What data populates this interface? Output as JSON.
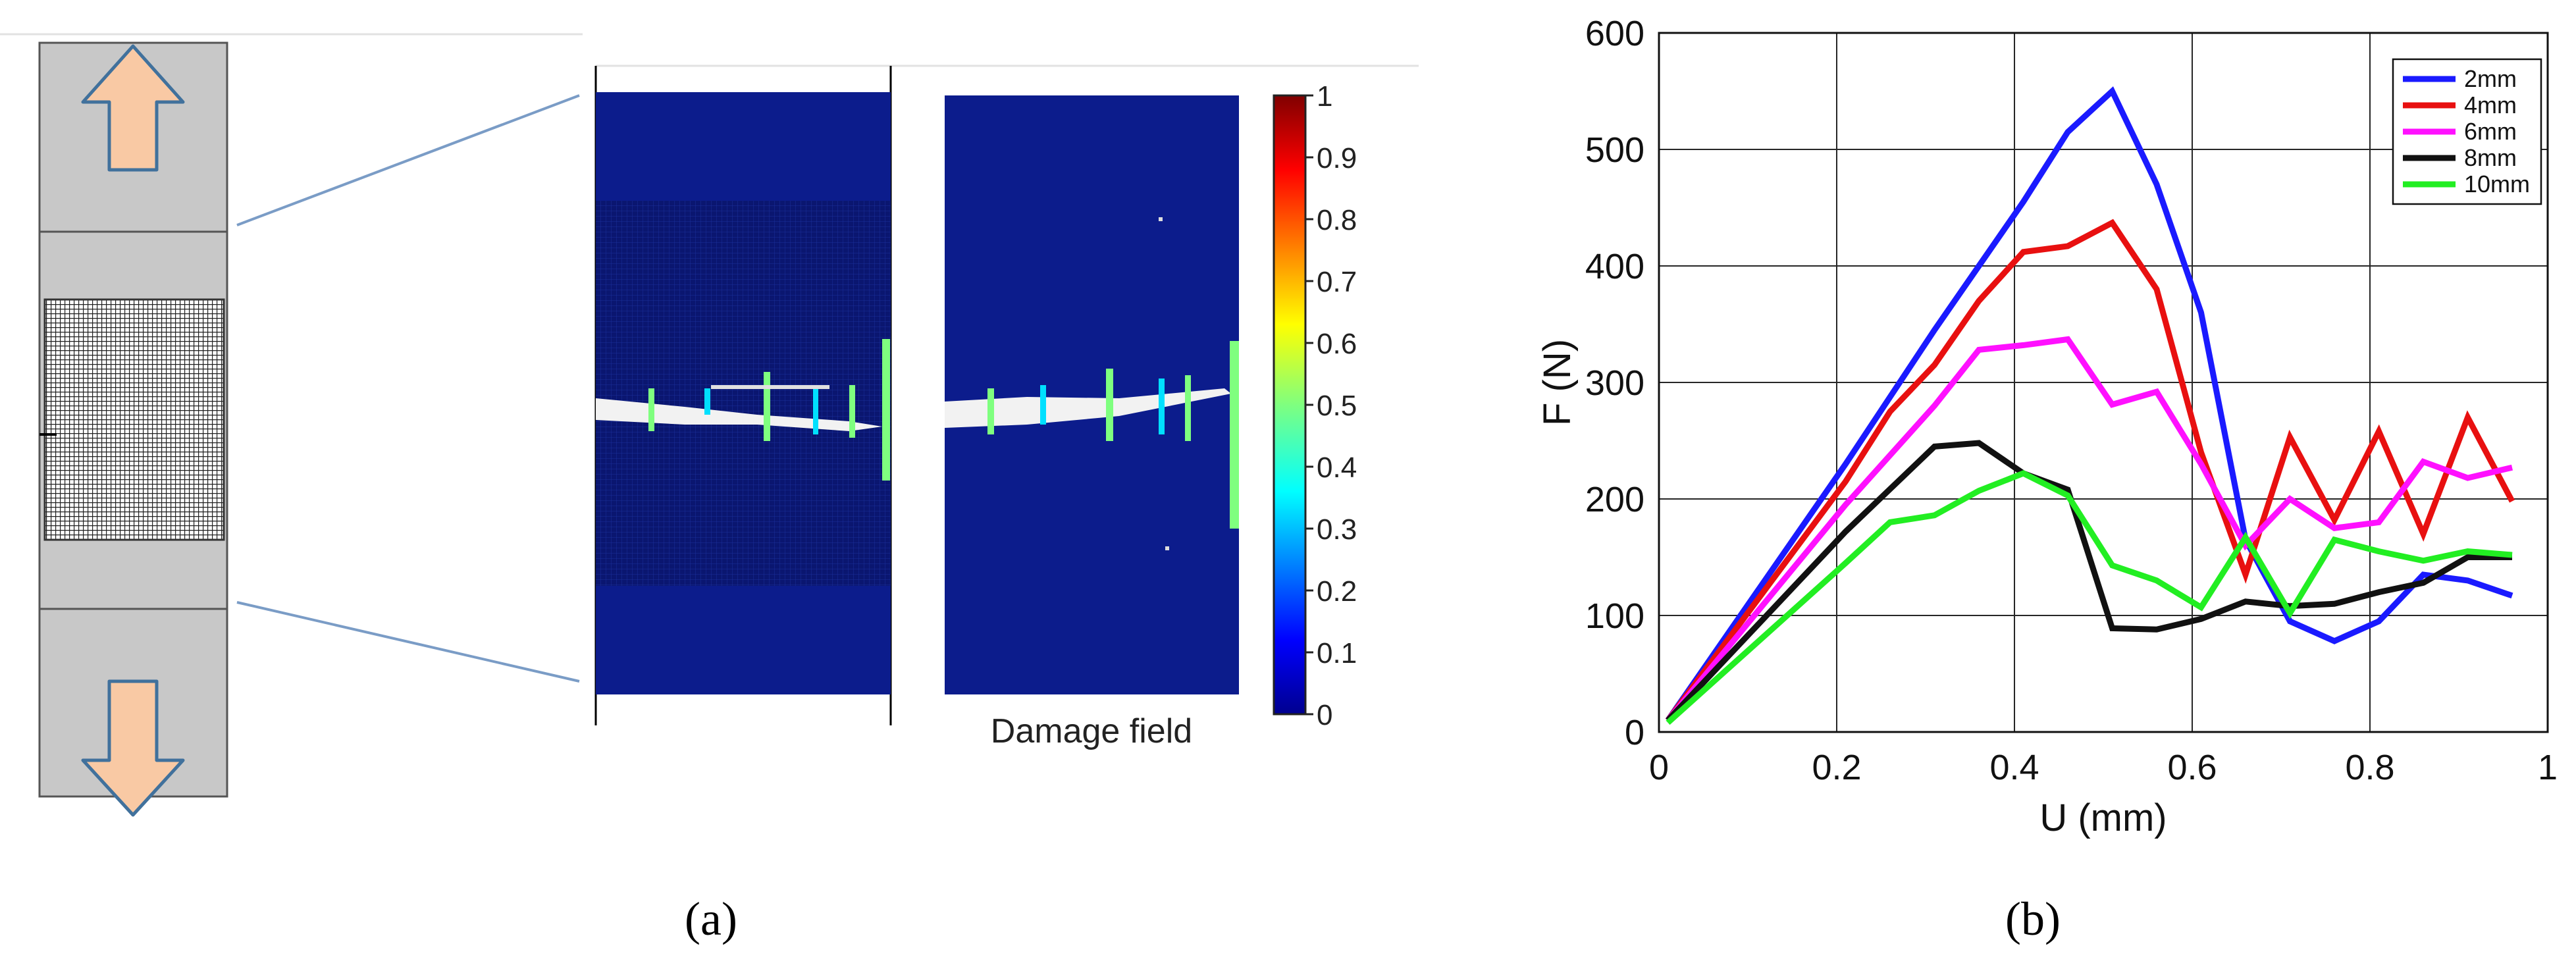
{
  "panel_a": {
    "caption": "(a)",
    "damage_field_label": "Damage field",
    "colorbar": {
      "ticks": [
        "1",
        "0.9",
        "0.8",
        "0.7",
        "0.6",
        "0.5",
        "0.4",
        "0.3",
        "0.2",
        "0.1",
        "0"
      ],
      "colormap": "jet"
    },
    "colors": {
      "specimen_gray": "#c8c8c8",
      "arrow_fill": "#f9c9a4",
      "arrow_stroke": "#41719c",
      "field_blue": "#0c1c8c",
      "zoom_line": "#7a9cc6"
    },
    "icons": [
      "arrow-up-icon",
      "arrow-down-icon"
    ]
  },
  "panel_b": {
    "caption": "(b)"
  },
  "chart_data": {
    "type": "line",
    "xlabel": "U (mm)",
    "ylabel": "F (N)",
    "xlim": [
      0,
      1
    ],
    "ylim": [
      0,
      600
    ],
    "xticks": [
      "0",
      "0.2",
      "0.4",
      "0.6",
      "0.8",
      "1"
    ],
    "yticks": [
      "0",
      "100",
      "200",
      "300",
      "400",
      "500",
      "600"
    ],
    "grid": true,
    "legend_position": "top-right",
    "series": [
      {
        "name": "2mm",
        "color": "#1a1aff",
        "x": [
          0.01,
          0.21,
          0.31,
          0.36,
          0.41,
          0.46,
          0.51,
          0.56,
          0.61,
          0.66,
          0.71,
          0.76,
          0.81,
          0.86,
          0.91,
          0.96
        ],
        "y": [
          10,
          230,
          345,
          400,
          455,
          515,
          550,
          470,
          360,
          165,
          95,
          78,
          95,
          135,
          130,
          117
        ]
      },
      {
        "name": "4mm",
        "color": "#e81010",
        "x": [
          0.01,
          0.21,
          0.26,
          0.31,
          0.36,
          0.41,
          0.46,
          0.51,
          0.56,
          0.61,
          0.66,
          0.71,
          0.76,
          0.81,
          0.86,
          0.91,
          0.96
        ],
        "y": [
          10,
          215,
          275,
          315,
          370,
          412,
          417,
          437,
          380,
          240,
          135,
          253,
          182,
          258,
          170,
          270,
          198
        ]
      },
      {
        "name": "6mm",
        "color": "#ff10ff",
        "x": [
          0.01,
          0.21,
          0.31,
          0.36,
          0.41,
          0.46,
          0.51,
          0.56,
          0.61,
          0.66,
          0.71,
          0.76,
          0.81,
          0.86,
          0.91,
          0.96
        ],
        "y": [
          10,
          195,
          280,
          328,
          332,
          337,
          281,
          292,
          230,
          160,
          200,
          175,
          180,
          232,
          218,
          227
        ]
      },
      {
        "name": "8mm",
        "color": "#111111",
        "x": [
          0.01,
          0.21,
          0.31,
          0.36,
          0.41,
          0.46,
          0.51,
          0.56,
          0.61,
          0.66,
          0.71,
          0.76,
          0.81,
          0.86,
          0.91,
          0.96
        ],
        "y": [
          10,
          172,
          245,
          248,
          222,
          208,
          89,
          88,
          97,
          112,
          108,
          110,
          120,
          128,
          150,
          150
        ]
      },
      {
        "name": "10mm",
        "color": "#22ee22",
        "x": [
          0.01,
          0.21,
          0.26,
          0.31,
          0.36,
          0.41,
          0.46,
          0.51,
          0.56,
          0.61,
          0.66,
          0.71,
          0.76,
          0.81,
          0.86,
          0.91,
          0.96
        ],
        "y": [
          8,
          145,
          180,
          186,
          207,
          222,
          203,
          143,
          130,
          107,
          167,
          102,
          165,
          155,
          147,
          155,
          152
        ]
      }
    ]
  }
}
